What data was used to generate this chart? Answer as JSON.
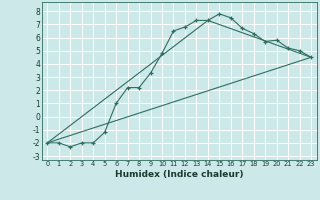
{
  "bg_color": "#cce8e8",
  "grid_color": "#ffffff",
  "line_color": "#2e6e60",
  "xlabel": "Humidex (Indice chaleur)",
  "xlim": [
    -0.5,
    23.5
  ],
  "ylim": [
    -3.3,
    8.7
  ],
  "yticks": [
    -3,
    -2,
    -1,
    0,
    1,
    2,
    3,
    4,
    5,
    6,
    7,
    8
  ],
  "xticks": [
    0,
    1,
    2,
    3,
    4,
    5,
    6,
    7,
    8,
    9,
    10,
    11,
    12,
    13,
    14,
    15,
    16,
    17,
    18,
    19,
    20,
    21,
    22,
    23
  ],
  "series1_x": [
    0,
    1,
    2,
    3,
    4,
    5,
    6,
    7,
    8,
    9,
    10,
    11,
    12,
    13,
    14,
    15,
    16,
    17,
    18,
    19,
    20,
    21,
    22,
    23
  ],
  "series1_y": [
    -2.0,
    -2.0,
    -2.3,
    -2.0,
    -2.0,
    -1.2,
    1.0,
    2.2,
    2.2,
    3.3,
    4.8,
    6.5,
    6.8,
    7.3,
    7.3,
    7.8,
    7.5,
    6.7,
    6.3,
    5.7,
    5.8,
    5.2,
    5.0,
    4.5
  ],
  "series2_x": [
    0,
    23
  ],
  "series2_y": [
    -2.0,
    4.5
  ],
  "series3_x": [
    0,
    14,
    23
  ],
  "series3_y": [
    -2.0,
    7.3,
    4.5
  ],
  "ytick_fontsize": 5.5,
  "xtick_fontsize": 4.8,
  "xlabel_fontsize": 6.5
}
